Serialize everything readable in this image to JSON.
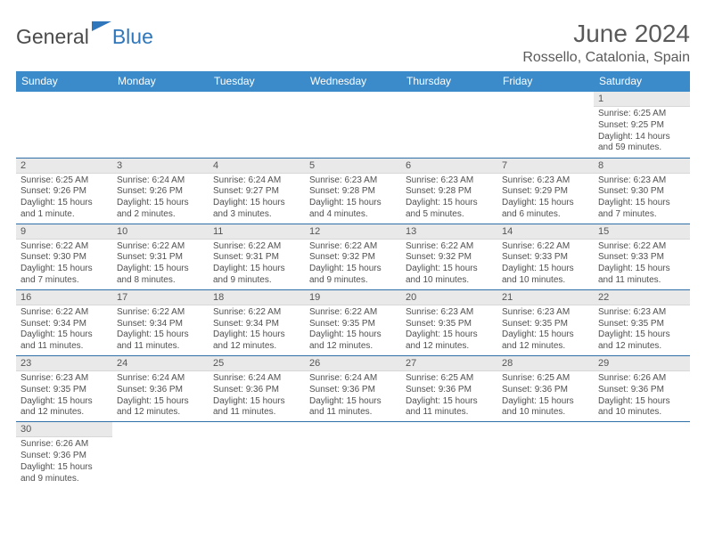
{
  "logo": {
    "text1": "General",
    "text2": "Blue"
  },
  "title": "June 2024",
  "location": "Rossello, Catalonia, Spain",
  "colors": {
    "header_bg": "#3b8bca",
    "header_text": "#ffffff",
    "row_border": "#2f6fa8",
    "daynum_bg": "#e9e9e9",
    "logo_blue": "#2f77ba"
  },
  "weekdays": [
    "Sunday",
    "Monday",
    "Tuesday",
    "Wednesday",
    "Thursday",
    "Friday",
    "Saturday"
  ],
  "weeks": [
    [
      null,
      null,
      null,
      null,
      null,
      null,
      {
        "n": "1",
        "sr": "Sunrise: 6:25 AM",
        "ss": "Sunset: 9:25 PM",
        "dl1": "Daylight: 14 hours",
        "dl2": "and 59 minutes."
      }
    ],
    [
      {
        "n": "2",
        "sr": "Sunrise: 6:25 AM",
        "ss": "Sunset: 9:26 PM",
        "dl1": "Daylight: 15 hours",
        "dl2": "and 1 minute."
      },
      {
        "n": "3",
        "sr": "Sunrise: 6:24 AM",
        "ss": "Sunset: 9:26 PM",
        "dl1": "Daylight: 15 hours",
        "dl2": "and 2 minutes."
      },
      {
        "n": "4",
        "sr": "Sunrise: 6:24 AM",
        "ss": "Sunset: 9:27 PM",
        "dl1": "Daylight: 15 hours",
        "dl2": "and 3 minutes."
      },
      {
        "n": "5",
        "sr": "Sunrise: 6:23 AM",
        "ss": "Sunset: 9:28 PM",
        "dl1": "Daylight: 15 hours",
        "dl2": "and 4 minutes."
      },
      {
        "n": "6",
        "sr": "Sunrise: 6:23 AM",
        "ss": "Sunset: 9:28 PM",
        "dl1": "Daylight: 15 hours",
        "dl2": "and 5 minutes."
      },
      {
        "n": "7",
        "sr": "Sunrise: 6:23 AM",
        "ss": "Sunset: 9:29 PM",
        "dl1": "Daylight: 15 hours",
        "dl2": "and 6 minutes."
      },
      {
        "n": "8",
        "sr": "Sunrise: 6:23 AM",
        "ss": "Sunset: 9:30 PM",
        "dl1": "Daylight: 15 hours",
        "dl2": "and 7 minutes."
      }
    ],
    [
      {
        "n": "9",
        "sr": "Sunrise: 6:22 AM",
        "ss": "Sunset: 9:30 PM",
        "dl1": "Daylight: 15 hours",
        "dl2": "and 7 minutes."
      },
      {
        "n": "10",
        "sr": "Sunrise: 6:22 AM",
        "ss": "Sunset: 9:31 PM",
        "dl1": "Daylight: 15 hours",
        "dl2": "and 8 minutes."
      },
      {
        "n": "11",
        "sr": "Sunrise: 6:22 AM",
        "ss": "Sunset: 9:31 PM",
        "dl1": "Daylight: 15 hours",
        "dl2": "and 9 minutes."
      },
      {
        "n": "12",
        "sr": "Sunrise: 6:22 AM",
        "ss": "Sunset: 9:32 PM",
        "dl1": "Daylight: 15 hours",
        "dl2": "and 9 minutes."
      },
      {
        "n": "13",
        "sr": "Sunrise: 6:22 AM",
        "ss": "Sunset: 9:32 PM",
        "dl1": "Daylight: 15 hours",
        "dl2": "and 10 minutes."
      },
      {
        "n": "14",
        "sr": "Sunrise: 6:22 AM",
        "ss": "Sunset: 9:33 PM",
        "dl1": "Daylight: 15 hours",
        "dl2": "and 10 minutes."
      },
      {
        "n": "15",
        "sr": "Sunrise: 6:22 AM",
        "ss": "Sunset: 9:33 PM",
        "dl1": "Daylight: 15 hours",
        "dl2": "and 11 minutes."
      }
    ],
    [
      {
        "n": "16",
        "sr": "Sunrise: 6:22 AM",
        "ss": "Sunset: 9:34 PM",
        "dl1": "Daylight: 15 hours",
        "dl2": "and 11 minutes."
      },
      {
        "n": "17",
        "sr": "Sunrise: 6:22 AM",
        "ss": "Sunset: 9:34 PM",
        "dl1": "Daylight: 15 hours",
        "dl2": "and 11 minutes."
      },
      {
        "n": "18",
        "sr": "Sunrise: 6:22 AM",
        "ss": "Sunset: 9:34 PM",
        "dl1": "Daylight: 15 hours",
        "dl2": "and 12 minutes."
      },
      {
        "n": "19",
        "sr": "Sunrise: 6:22 AM",
        "ss": "Sunset: 9:35 PM",
        "dl1": "Daylight: 15 hours",
        "dl2": "and 12 minutes."
      },
      {
        "n": "20",
        "sr": "Sunrise: 6:23 AM",
        "ss": "Sunset: 9:35 PM",
        "dl1": "Daylight: 15 hours",
        "dl2": "and 12 minutes."
      },
      {
        "n": "21",
        "sr": "Sunrise: 6:23 AM",
        "ss": "Sunset: 9:35 PM",
        "dl1": "Daylight: 15 hours",
        "dl2": "and 12 minutes."
      },
      {
        "n": "22",
        "sr": "Sunrise: 6:23 AM",
        "ss": "Sunset: 9:35 PM",
        "dl1": "Daylight: 15 hours",
        "dl2": "and 12 minutes."
      }
    ],
    [
      {
        "n": "23",
        "sr": "Sunrise: 6:23 AM",
        "ss": "Sunset: 9:35 PM",
        "dl1": "Daylight: 15 hours",
        "dl2": "and 12 minutes."
      },
      {
        "n": "24",
        "sr": "Sunrise: 6:24 AM",
        "ss": "Sunset: 9:36 PM",
        "dl1": "Daylight: 15 hours",
        "dl2": "and 12 minutes."
      },
      {
        "n": "25",
        "sr": "Sunrise: 6:24 AM",
        "ss": "Sunset: 9:36 PM",
        "dl1": "Daylight: 15 hours",
        "dl2": "and 11 minutes."
      },
      {
        "n": "26",
        "sr": "Sunrise: 6:24 AM",
        "ss": "Sunset: 9:36 PM",
        "dl1": "Daylight: 15 hours",
        "dl2": "and 11 minutes."
      },
      {
        "n": "27",
        "sr": "Sunrise: 6:25 AM",
        "ss": "Sunset: 9:36 PM",
        "dl1": "Daylight: 15 hours",
        "dl2": "and 11 minutes."
      },
      {
        "n": "28",
        "sr": "Sunrise: 6:25 AM",
        "ss": "Sunset: 9:36 PM",
        "dl1": "Daylight: 15 hours",
        "dl2": "and 10 minutes."
      },
      {
        "n": "29",
        "sr": "Sunrise: 6:26 AM",
        "ss": "Sunset: 9:36 PM",
        "dl1": "Daylight: 15 hours",
        "dl2": "and 10 minutes."
      }
    ],
    [
      {
        "n": "30",
        "sr": "Sunrise: 6:26 AM",
        "ss": "Sunset: 9:36 PM",
        "dl1": "Daylight: 15 hours",
        "dl2": "and 9 minutes."
      },
      null,
      null,
      null,
      null,
      null,
      null
    ]
  ]
}
